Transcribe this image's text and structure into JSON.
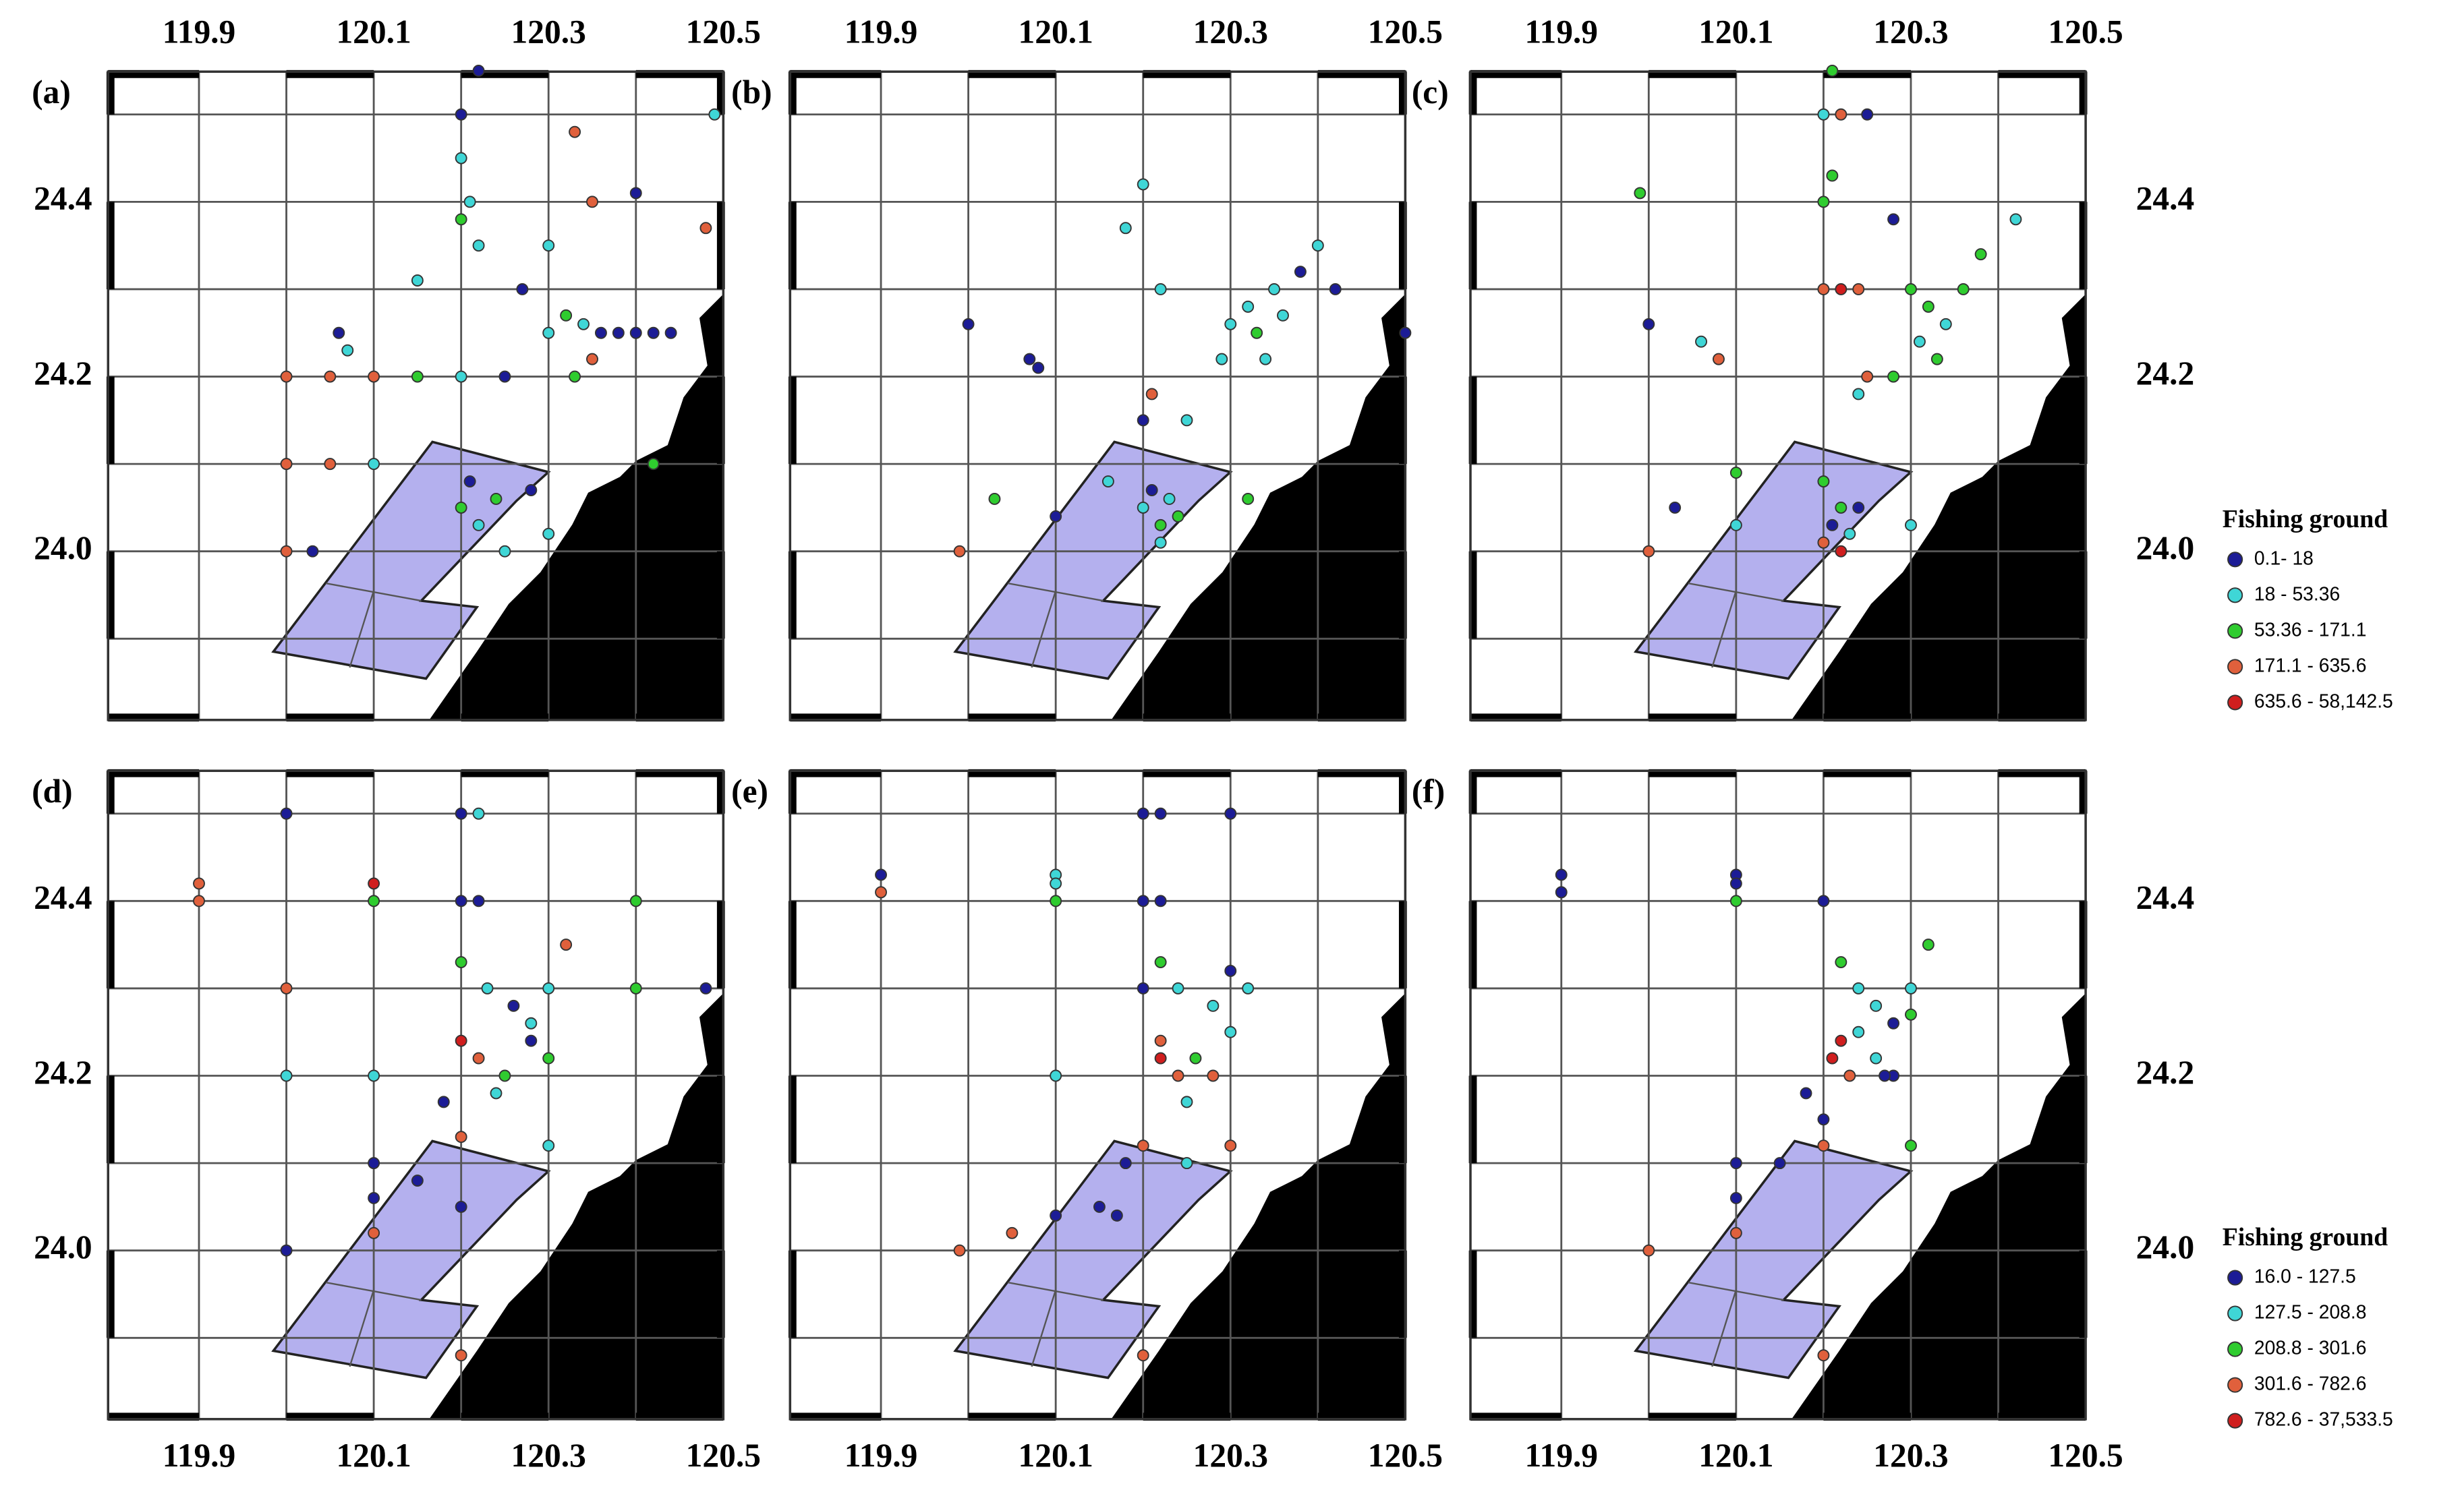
{
  "map": {
    "xlim": [
      119.796,
      120.5
    ],
    "ylim": [
      23.807,
      24.549
    ],
    "xticks": [
      119.9,
      120.1,
      120.3,
      120.5
    ],
    "yticks": [
      24.4,
      24.2,
      {
        "value": 24,
        "label": "24.0"
      }
    ],
    "xgrid": [
      119.9,
      120,
      120.1,
      120.2,
      120.3,
      120.4
    ],
    "ygrid": [
      24.5,
      24.4,
      24.3,
      24.2,
      24.1,
      24,
      23.9
    ],
    "colors": [
      "#1c1c96",
      "#3fd6d6",
      "#2fcc2f",
      "#e0603c",
      "#d01e1e"
    ]
  },
  "legends": [
    {
      "title": "Fishing ground",
      "items": [
        "0.1- 18",
        "18 - 53.36",
        "53.36 - 171.1",
        "171.1 - 635.6",
        "635.6 - 58,142.5"
      ]
    },
    {
      "title": "Fishing ground",
      "items": [
        "16.0 - 127.5",
        "127.5 - 208.8",
        "208.8 - 301.6",
        "301.6 - 782.6",
        "782.6 - 37,533.5"
      ]
    }
  ],
  "panels": [
    {
      "label": "(a)",
      "points": [
        [
          120.2,
          24.5,
          0
        ],
        [
          120.22,
          24.55,
          0
        ],
        [
          120.2,
          24.45,
          1
        ],
        [
          120.21,
          24.4,
          1
        ],
        [
          120.2,
          24.38,
          2
        ],
        [
          120.22,
          24.35,
          1
        ],
        [
          120.3,
          24.35,
          1
        ],
        [
          120.33,
          24.48,
          3
        ],
        [
          120.35,
          24.4,
          3
        ],
        [
          120.4,
          24.41,
          0
        ],
        [
          120.27,
          24.3,
          0
        ],
        [
          120.3,
          24.25,
          1
        ],
        [
          120.32,
          24.27,
          2
        ],
        [
          120.34,
          24.26,
          1
        ],
        [
          120.36,
          24.25,
          0
        ],
        [
          120.38,
          24.25,
          0
        ],
        [
          120.4,
          24.25,
          0
        ],
        [
          120.42,
          24.25,
          0
        ],
        [
          120.44,
          24.25,
          0
        ],
        [
          120.35,
          24.22,
          3
        ],
        [
          120.33,
          24.2,
          2
        ],
        [
          120.2,
          24.2,
          1
        ],
        [
          120.15,
          24.2,
          2
        ],
        [
          120.1,
          24.2,
          3
        ],
        [
          120.05,
          24.2,
          3
        ],
        [
          120,
          24.2,
          3
        ],
        [
          120.25,
          24.2,
          0
        ],
        [
          120,
          24.1,
          3
        ],
        [
          120.05,
          24.1,
          3
        ],
        [
          120.1,
          24.1,
          1
        ],
        [
          120,
          24,
          3
        ],
        [
          120.03,
          24,
          0
        ],
        [
          120.2,
          24.05,
          2
        ],
        [
          120.22,
          24.03,
          1
        ],
        [
          120.24,
          24.06,
          2
        ],
        [
          120.21,
          24.08,
          0
        ],
        [
          120.25,
          24,
          1
        ],
        [
          120.28,
          24.07,
          0
        ],
        [
          120.3,
          24.02,
          1
        ],
        [
          120.42,
          24.1,
          2
        ],
        [
          120.48,
          24.37,
          3
        ],
        [
          120.49,
          24.5,
          1
        ],
        [
          120.06,
          24.25,
          0
        ],
        [
          120.07,
          24.23,
          1
        ],
        [
          120.15,
          24.31,
          1
        ]
      ]
    },
    {
      "label": "(b)",
      "points": [
        [
          120,
          24.26,
          0
        ],
        [
          120.07,
          24.22,
          0
        ],
        [
          120.08,
          24.21,
          0
        ],
        [
          120.2,
          24.42,
          1
        ],
        [
          120.18,
          24.37,
          1
        ],
        [
          120.22,
          24.3,
          1
        ],
        [
          120.3,
          24.26,
          1
        ],
        [
          120.32,
          24.28,
          1
        ],
        [
          120.33,
          24.25,
          2
        ],
        [
          120.35,
          24.3,
          1
        ],
        [
          120.38,
          24.32,
          0
        ],
        [
          120.4,
          24.35,
          1
        ],
        [
          120.42,
          24.3,
          0
        ],
        [
          120.34,
          24.22,
          1
        ],
        [
          120.36,
          24.27,
          1
        ],
        [
          120.29,
          24.22,
          1
        ],
        [
          120.5,
          24.25,
          0
        ],
        [
          120.2,
          24.05,
          1
        ],
        [
          120.22,
          24.03,
          2
        ],
        [
          120.21,
          24.07,
          0
        ],
        [
          120.23,
          24.06,
          1
        ],
        [
          120.22,
          24.01,
          1
        ],
        [
          120.24,
          24.04,
          2
        ],
        [
          120.2,
          24.15,
          0
        ],
        [
          120.21,
          24.18,
          3
        ],
        [
          120.25,
          24.15,
          1
        ],
        [
          120.1,
          24.04,
          0
        ],
        [
          120.03,
          24.06,
          2
        ],
        [
          119.99,
          24,
          3
        ],
        [
          120.32,
          24.06,
          2
        ],
        [
          120.16,
          24.08,
          1
        ]
      ]
    },
    {
      "label": "(c)",
      "points": [
        [
          120.2,
          24.5,
          1
        ],
        [
          120.21,
          24.55,
          2
        ],
        [
          120.22,
          24.5,
          3
        ],
        [
          120.25,
          24.5,
          0
        ],
        [
          120.21,
          24.43,
          2
        ],
        [
          120.2,
          24.4,
          2
        ],
        [
          119.99,
          24.41,
          2
        ],
        [
          120.2,
          24.3,
          3
        ],
        [
          120.22,
          24.3,
          4
        ],
        [
          120.24,
          24.3,
          3
        ],
        [
          120.3,
          24.3,
          2
        ],
        [
          120.32,
          24.28,
          2
        ],
        [
          120.34,
          24.26,
          1
        ],
        [
          120.36,
          24.3,
          2
        ],
        [
          120.33,
          24.22,
          2
        ],
        [
          120.31,
          24.24,
          1
        ],
        [
          120.38,
          24.34,
          2
        ],
        [
          120.42,
          24.38,
          1
        ],
        [
          120.28,
          24.2,
          2
        ],
        [
          120.25,
          24.2,
          3
        ],
        [
          120.24,
          24.18,
          1
        ],
        [
          120,
          24.26,
          0
        ],
        [
          120.06,
          24.24,
          1
        ],
        [
          120.08,
          24.22,
          3
        ],
        [
          120.22,
          24.05,
          2
        ],
        [
          120.21,
          24.03,
          0
        ],
        [
          120.23,
          24.02,
          1
        ],
        [
          120.22,
          24,
          4
        ],
        [
          120.2,
          24.01,
          3
        ],
        [
          120.24,
          24.05,
          0
        ],
        [
          120.2,
          24.08,
          2
        ],
        [
          120.1,
          24.03,
          1
        ],
        [
          120.03,
          24.05,
          0
        ],
        [
          120.1,
          24.09,
          2
        ],
        [
          120,
          24,
          3
        ],
        [
          120.3,
          24.03,
          1
        ],
        [
          120.28,
          24.38,
          0
        ]
      ]
    },
    {
      "label": "(d)",
      "points": [
        [
          119.9,
          24.42,
          3
        ],
        [
          119.9,
          24.4,
          3
        ],
        [
          120,
          24.5,
          0
        ],
        [
          120.1,
          24.42,
          4
        ],
        [
          120.1,
          24.4,
          2
        ],
        [
          120.2,
          24.5,
          0
        ],
        [
          120.22,
          24.5,
          1
        ],
        [
          120.2,
          24.4,
          0
        ],
        [
          120.22,
          24.4,
          0
        ],
        [
          120.2,
          24.33,
          2
        ],
        [
          120.23,
          24.3,
          1
        ],
        [
          120.26,
          24.28,
          0
        ],
        [
          120.28,
          24.26,
          1
        ],
        [
          120.3,
          24.3,
          1
        ],
        [
          120.32,
          24.35,
          3
        ],
        [
          120.3,
          24.22,
          2
        ],
        [
          120.25,
          24.2,
          2
        ],
        [
          120.22,
          24.22,
          3
        ],
        [
          120.2,
          24.24,
          4
        ],
        [
          120.24,
          24.18,
          1
        ],
        [
          120.28,
          24.24,
          0
        ],
        [
          120.4,
          24.4,
          2
        ],
        [
          120.4,
          24.3,
          2
        ],
        [
          120.48,
          24.3,
          0
        ],
        [
          120,
          24.3,
          3
        ],
        [
          120,
          24.2,
          1
        ],
        [
          120.1,
          24.2,
          1
        ],
        [
          120.2,
          24.13,
          3
        ],
        [
          120.1,
          24.1,
          0
        ],
        [
          120.1,
          24.06,
          0
        ],
        [
          120.2,
          24.05,
          0
        ],
        [
          120.15,
          24.08,
          0
        ],
        [
          120,
          24,
          0
        ],
        [
          120.1,
          24.02,
          3
        ],
        [
          120.2,
          23.88,
          3
        ],
        [
          120.3,
          24.12,
          1
        ],
        [
          120.18,
          24.17,
          0
        ]
      ]
    },
    {
      "label": "(e)",
      "points": [
        [
          119.9,
          24.43,
          0
        ],
        [
          119.9,
          24.41,
          3
        ],
        [
          120.1,
          24.43,
          1
        ],
        [
          120.1,
          24.42,
          1
        ],
        [
          120.1,
          24.4,
          2
        ],
        [
          120.2,
          24.5,
          0
        ],
        [
          120.22,
          24.5,
          0
        ],
        [
          120.3,
          24.5,
          0
        ],
        [
          120.2,
          24.4,
          0
        ],
        [
          120.22,
          24.4,
          0
        ],
        [
          120.22,
          24.33,
          2
        ],
        [
          120.24,
          24.3,
          1
        ],
        [
          120.28,
          24.28,
          1
        ],
        [
          120.3,
          24.32,
          0
        ],
        [
          120.32,
          24.3,
          1
        ],
        [
          120.22,
          24.22,
          4
        ],
        [
          120.24,
          24.2,
          3
        ],
        [
          120.26,
          24.22,
          2
        ],
        [
          120.28,
          24.2,
          3
        ],
        [
          120.25,
          24.17,
          1
        ],
        [
          120.3,
          24.25,
          1
        ],
        [
          120.2,
          24.3,
          0
        ],
        [
          120.1,
          24.2,
          1
        ],
        [
          120.2,
          24.12,
          3
        ],
        [
          120.18,
          24.1,
          0
        ],
        [
          120.1,
          24.04,
          0
        ],
        [
          120.15,
          24.05,
          0
        ],
        [
          120.17,
          24.04,
          0
        ],
        [
          120.05,
          24.02,
          3
        ],
        [
          119.99,
          24,
          3
        ],
        [
          120.2,
          23.88,
          3
        ],
        [
          120.25,
          24.1,
          1
        ],
        [
          120.3,
          24.12,
          3
        ],
        [
          120.22,
          24.24,
          3
        ]
      ]
    },
    {
      "label": "(f)",
      "points": [
        [
          119.9,
          24.43,
          0
        ],
        [
          119.9,
          24.41,
          0
        ],
        [
          120.1,
          24.43,
          0
        ],
        [
          120.1,
          24.42,
          0
        ],
        [
          120.1,
          24.4,
          2
        ],
        [
          120.2,
          24.4,
          0
        ],
        [
          120.22,
          24.33,
          2
        ],
        [
          120.24,
          24.3,
          1
        ],
        [
          120.26,
          24.28,
          1
        ],
        [
          120.28,
          24.26,
          0
        ],
        [
          120.3,
          24.3,
          1
        ],
        [
          120.32,
          24.35,
          2
        ],
        [
          120.3,
          24.27,
          2
        ],
        [
          120.21,
          24.22,
          4
        ],
        [
          120.23,
          24.2,
          3
        ],
        [
          120.22,
          24.24,
          4
        ],
        [
          120.26,
          24.22,
          1
        ],
        [
          120.28,
          24.2,
          0
        ],
        [
          120.24,
          24.25,
          1
        ],
        [
          120.18,
          24.18,
          0
        ],
        [
          120.2,
          24.15,
          0
        ],
        [
          120.3,
          24.12,
          2
        ],
        [
          120.2,
          24.12,
          3
        ],
        [
          120.15,
          24.1,
          0
        ],
        [
          120.1,
          24.06,
          0
        ],
        [
          120.1,
          24.02,
          3
        ],
        [
          120.1,
          24.1,
          0
        ],
        [
          120,
          24,
          3
        ],
        [
          120.2,
          23.88,
          3
        ],
        [
          120.27,
          24.2,
          0
        ]
      ]
    }
  ]
}
